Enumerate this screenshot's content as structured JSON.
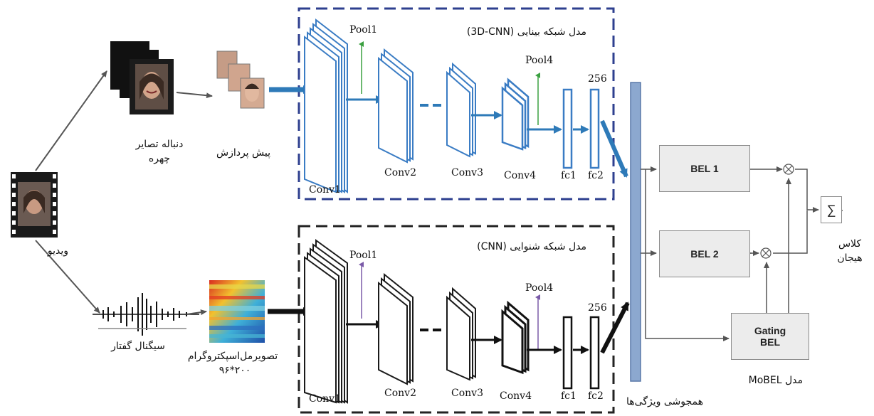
{
  "input": {
    "video_label": "ویدیو",
    "face_sequence_label_line1": "دنباله تصایر",
    "face_sequence_label_line2": "چهره",
    "preprocess_label": "پیش پردازش",
    "speech_signal_label": "سیگنال گفتار",
    "spectrogram_label_line1": "تصویرمل‌اسپکتروگرام",
    "spectrogram_label_line2": "۲۰۰*۹۶"
  },
  "visual_model": {
    "title": "مدل شبکه بینایی (3D-CNN)",
    "pool1": "Pool1",
    "pool4": "Pool4",
    "size": "256",
    "conv1": "Conv1",
    "conv2": "Conv2",
    "conv3": "Conv3",
    "conv4": "Conv4",
    "fc1": "fc1",
    "fc2": "fc2",
    "color": "#3a7cc4",
    "border_color": "#2e3f8f"
  },
  "audio_model": {
    "title": "مدل شبکه شنوایی (CNN)",
    "pool1": "Pool1",
    "pool4": "Pool4",
    "size": "256",
    "conv1": "Conv1",
    "conv2": "Conv2",
    "conv3": "Conv3",
    "conv4": "Conv4",
    "fc1": "fc1",
    "fc2": "fc2",
    "color": "#1a1a1a",
    "border_color": "#222222"
  },
  "fusion": {
    "label": "همجوشی ویژگی‌ها",
    "bar_color": "#8ca8cf"
  },
  "mobel": {
    "bel1": "BEL 1",
    "bel2": "BEL 2",
    "gating_line1": "Gating",
    "gating_line2": "BEL",
    "model_label": "مدل MoBEL",
    "multiply_symbol": "⊗",
    "sum_symbol": "∑",
    "output_line1": "کلاس",
    "output_line2": "هیجان"
  }
}
